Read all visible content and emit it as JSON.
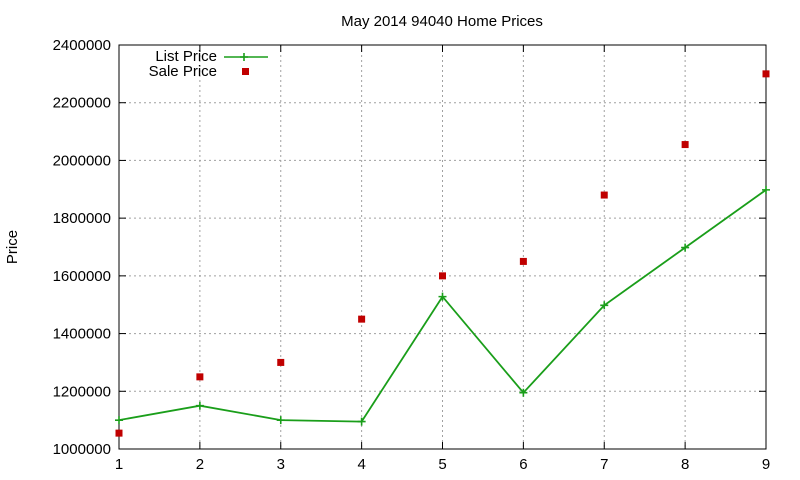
{
  "chart_data": {
    "type": "line",
    "title": "May 2014 94040 Home Prices",
    "xlabel": "",
    "ylabel": "Price",
    "x": [
      1,
      2,
      3,
      4,
      5,
      6,
      7,
      8,
      9
    ],
    "xlim": [
      1,
      9
    ],
    "ylim": [
      1000000,
      2400000
    ],
    "xticks": [
      "1",
      "2",
      "3",
      "4",
      "5",
      "6",
      "7",
      "8",
      "9"
    ],
    "yticks": [
      "1000000",
      "1200000",
      "1400000",
      "1600000",
      "1800000",
      "2000000",
      "2200000",
      "2400000"
    ],
    "grid": true,
    "legend_position": "top-left",
    "series": [
      {
        "name": "List Price",
        "style": "line-with-plus-markers",
        "color": "#1a9e1a",
        "values": [
          1100000,
          1150000,
          1100000,
          1095000,
          1528000,
          1195000,
          1498000,
          1698000,
          1898000
        ]
      },
      {
        "name": "Sale Price",
        "style": "square-markers",
        "color": "#c00000",
        "values": [
          1055000,
          1250000,
          1300000,
          1450000,
          1600000,
          1650000,
          1880000,
          2055000,
          2300000
        ]
      }
    ]
  }
}
